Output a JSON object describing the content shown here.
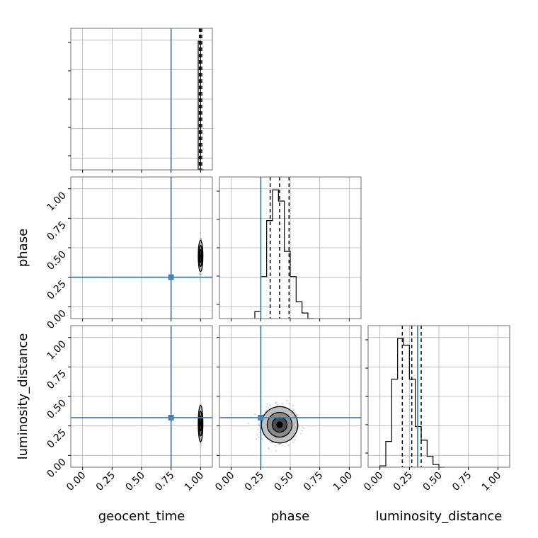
{
  "chart_data": {
    "type": "corner",
    "parameters": [
      "geocent_time",
      "phase",
      "luminosity_distance"
    ],
    "axis_labels": {
      "geocent_time": "geocent_time",
      "phase": "phase",
      "luminosity_distance": "luminosity_distance"
    },
    "ticks": [
      0.0,
      0.25,
      0.5,
      0.75,
      1.0
    ],
    "tick_labels": [
      "0.00",
      "0.25",
      "0.50",
      "0.75",
      "1.00"
    ],
    "xlim": [
      -0.1,
      1.1
    ],
    "ylim": [
      -0.1,
      1.1
    ],
    "grid": true,
    "colors": {
      "truth": "#4682b4",
      "hist": "#000000",
      "points": "#808080"
    },
    "truths": {
      "geocent_time": 0.75,
      "phase": 0.25,
      "luminosity_distance": 0.32
    },
    "histograms": [
      {
        "parameter": "geocent_time",
        "edges": [
          0.98,
          1.0,
          1.03
        ],
        "counts": [
          1.0,
          0.0
        ],
        "quantiles": [
          0.99,
          1.0,
          1.01
        ]
      },
      {
        "parameter": "phase",
        "edges": [
          0.2,
          0.25,
          0.3,
          0.35,
          0.4,
          0.45,
          0.5,
          0.55,
          0.6,
          0.65,
          0.7
        ],
        "counts": [
          0.05,
          0.3,
          0.7,
          0.92,
          0.84,
          0.48,
          0.3,
          0.12,
          0.04,
          0.0
        ],
        "quantiles": [
          0.33,
          0.41,
          0.49
        ]
      },
      {
        "parameter": "luminosity_distance",
        "edges": [
          0.0,
          0.05,
          0.1,
          0.15,
          0.2,
          0.25,
          0.3,
          0.35,
          0.4,
          0.45,
          0.5,
          0.55
        ],
        "counts": [
          0.01,
          0.19,
          0.65,
          0.95,
          0.9,
          0.65,
          0.3,
          0.2,
          0.08,
          0.02,
          0.0
        ],
        "quantiles": [
          0.19,
          0.27,
          0.35
        ]
      }
    ],
    "pairs": [
      {
        "x": "geocent_time",
        "y": "phase",
        "center": [
          1.0,
          0.43
        ],
        "spread": [
          0.005,
          0.06
        ]
      },
      {
        "x": "geocent_time",
        "y": "luminosity_distance",
        "center": [
          1.0,
          0.27
        ],
        "spread": [
          0.005,
          0.07
        ]
      },
      {
        "x": "phase",
        "y": "luminosity_distance",
        "center": [
          0.41,
          0.26
        ],
        "spread": [
          0.07,
          0.07
        ]
      }
    ]
  }
}
